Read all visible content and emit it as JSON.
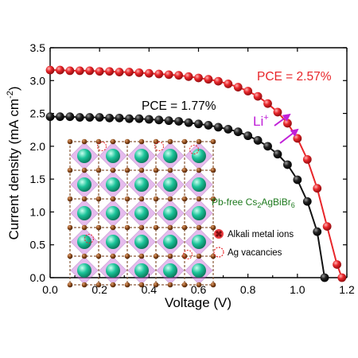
{
  "chart_data": {
    "type": "line",
    "xlabel": "Voltage (V)",
    "ylabel": "Current density (mA cm",
    "ylabel_sup": "-2",
    "ylabel_end": ")",
    "xlim": [
      0,
      1.2
    ],
    "ylim": [
      0,
      3.5
    ],
    "x_ticks": [
      "0.0",
      "0.2",
      "0.4",
      "0.6",
      "0.8",
      "1.0",
      "1.2"
    ],
    "y_ticks": [
      "0.0",
      "0.5",
      "1.0",
      "1.5",
      "2.0",
      "2.5",
      "3.0",
      "3.5"
    ],
    "grid": false,
    "series": [
      {
        "color": "#e8262a",
        "label": "PCE = 2.57%",
        "x": [
          0.0,
          0.04,
          0.08,
          0.12,
          0.16,
          0.2,
          0.24,
          0.28,
          0.32,
          0.36,
          0.4,
          0.44,
          0.48,
          0.52,
          0.56,
          0.6,
          0.64,
          0.68,
          0.72,
          0.76,
          0.8,
          0.84,
          0.88,
          0.92,
          0.96,
          1.0,
          1.04,
          1.08,
          1.12,
          1.16,
          1.18
        ],
        "y": [
          3.16,
          3.16,
          3.15,
          3.15,
          3.15,
          3.14,
          3.14,
          3.13,
          3.13,
          3.12,
          3.11,
          3.1,
          3.09,
          3.08,
          3.06,
          3.04,
          3.02,
          2.99,
          2.95,
          2.9,
          2.84,
          2.76,
          2.65,
          2.52,
          2.35,
          2.12,
          1.8,
          1.36,
          0.78,
          0.2,
          0.0
        ]
      },
      {
        "color": "#111111",
        "label": "PCE = 1.77%",
        "x": [
          0.0,
          0.04,
          0.08,
          0.12,
          0.16,
          0.2,
          0.24,
          0.28,
          0.32,
          0.36,
          0.4,
          0.44,
          0.48,
          0.52,
          0.56,
          0.6,
          0.64,
          0.68,
          0.72,
          0.76,
          0.8,
          0.84,
          0.88,
          0.92,
          0.96,
          1.0,
          1.04,
          1.08,
          1.11
        ],
        "y": [
          2.45,
          2.45,
          2.45,
          2.44,
          2.44,
          2.44,
          2.43,
          2.43,
          2.42,
          2.42,
          2.41,
          2.4,
          2.39,
          2.38,
          2.36,
          2.34,
          2.32,
          2.29,
          2.26,
          2.22,
          2.16,
          2.09,
          2.0,
          1.88,
          1.72,
          1.49,
          1.16,
          0.7,
          0.0
        ]
      }
    ],
    "annotations": {
      "ion": "Li",
      "ion_sup": "+",
      "material_pre": "Pb-free Cs",
      "material_sub1": "2",
      "material_mid": "AgBiBr",
      "material_sub2": "6",
      "legend_alkali": "Alkali metal ions",
      "legend_vacancy": "Ag vacancies"
    },
    "colors": {
      "arrow": "#c020d8",
      "material_text": "#1e7a1e",
      "crystal_green": "#1cc49a",
      "crystal_pink": "#c76bd8",
      "crystal_brown": "#8b4a1a"
    }
  }
}
